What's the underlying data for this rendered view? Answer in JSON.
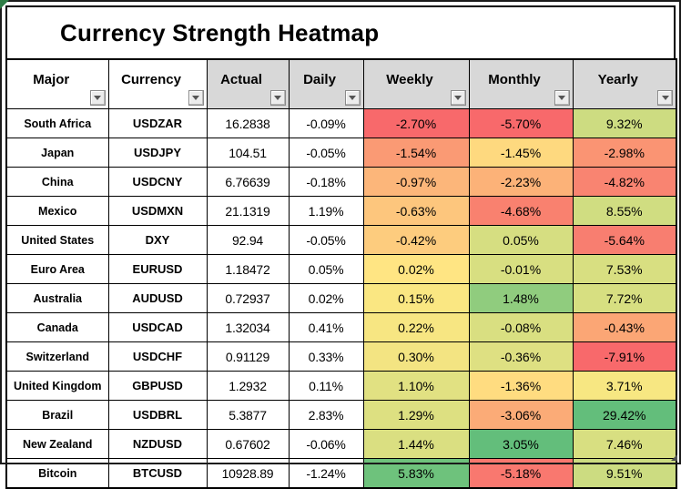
{
  "title": "Currency Strength Heatmap",
  "columns": [
    {
      "label": "Major",
      "header_bg": "#FFFFFF",
      "has_filter": true
    },
    {
      "label": "Currency",
      "header_bg": "#FFFFFF",
      "has_filter": true
    },
    {
      "label": "Actual",
      "header_bg": "#D8D8D8",
      "has_filter": true
    },
    {
      "label": "Daily",
      "header_bg": "#D8D8D8",
      "has_filter": true
    },
    {
      "label": "Weekly",
      "header_bg": "#D8D8D8",
      "has_filter": true
    },
    {
      "label": "Monthly",
      "header_bg": "#D8D8D8",
      "has_filter": true
    },
    {
      "label": "Yearly",
      "header_bg": "#D8D8D8",
      "has_filter": true
    }
  ],
  "rows": [
    {
      "major": "South Africa",
      "currency": "USDZAR",
      "actual": "16.2838",
      "daily": "-0.09%",
      "weekly": {
        "value": "-2.70%",
        "bg": "#F8696B"
      },
      "monthly": {
        "value": "-5.70%",
        "bg": "#F8696B"
      },
      "yearly": {
        "value": "9.32%",
        "bg": "#CDDC81"
      }
    },
    {
      "major": "Japan",
      "currency": "USDJPY",
      "actual": "104.51",
      "daily": "-0.05%",
      "weekly": {
        "value": "-1.54%",
        "bg": "#FA9A74"
      },
      "monthly": {
        "value": "-1.45%",
        "bg": "#FED97F"
      },
      "yearly": {
        "value": "-2.98%",
        "bg": "#FA9473"
      }
    },
    {
      "major": "China",
      "currency": "USDCNY",
      "actual": "6.76639",
      "daily": "-0.18%",
      "weekly": {
        "value": "-0.97%",
        "bg": "#FCB67A"
      },
      "monthly": {
        "value": "-2.23%",
        "bg": "#FCB278"
      },
      "yearly": {
        "value": "-4.82%",
        "bg": "#F98471"
      }
    },
    {
      "major": "Mexico",
      "currency": "USDMXN",
      "actual": "21.1319",
      "daily": "1.19%",
      "weekly": {
        "value": "-0.63%",
        "bg": "#FDC67D"
      },
      "monthly": {
        "value": "-4.68%",
        "bg": "#F9816F"
      },
      "yearly": {
        "value": "8.55%",
        "bg": "#D0DD81"
      }
    },
    {
      "major": "United States",
      "currency": "DXY",
      "actual": "92.94",
      "daily": "-0.05%",
      "weekly": {
        "value": "-0.42%",
        "bg": "#FDCC7E"
      },
      "monthly": {
        "value": "0.05%",
        "bg": "#D6DE81"
      },
      "yearly": {
        "value": "-5.64%",
        "bg": "#F87E70"
      }
    },
    {
      "major": "Euro Area",
      "currency": "EURUSD",
      "actual": "1.18472",
      "daily": "0.05%",
      "weekly": {
        "value": "0.02%",
        "bg": "#FFE583"
      },
      "monthly": {
        "value": "-0.01%",
        "bg": "#D8DF81"
      },
      "yearly": {
        "value": "7.53%",
        "bg": "#D8DF81"
      }
    },
    {
      "major": "Australia",
      "currency": "AUDUSD",
      "actual": "0.72937",
      "daily": "0.02%",
      "weekly": {
        "value": "0.15%",
        "bg": "#FAE782"
      },
      "monthly": {
        "value": "1.48%",
        "bg": "#90CC7E"
      },
      "yearly": {
        "value": "7.72%",
        "bg": "#D7DF81"
      }
    },
    {
      "major": "Canada",
      "currency": "USDCAD",
      "actual": "1.32034",
      "daily": "0.41%",
      "weekly": {
        "value": "0.22%",
        "bg": "#F7E682"
      },
      "monthly": {
        "value": "-0.08%",
        "bg": "#D9DF81"
      },
      "yearly": {
        "value": "-0.43%",
        "bg": "#FBA675"
      }
    },
    {
      "major": "Switzerland",
      "currency": "USDCHF",
      "actual": "0.91129",
      "daily": "0.33%",
      "weekly": {
        "value": "0.30%",
        "bg": "#F3E482"
      },
      "monthly": {
        "value": "-0.36%",
        "bg": "#DEE082"
      },
      "yearly": {
        "value": "-7.91%",
        "bg": "#F8696B"
      }
    },
    {
      "major": "United Kingdom",
      "currency": "GBPUSD",
      "actual": "1.2932",
      "daily": "0.11%",
      "weekly": {
        "value": "1.10%",
        "bg": "#E1E182"
      },
      "monthly": {
        "value": "-1.36%",
        "bg": "#FFDC80"
      },
      "yearly": {
        "value": "3.71%",
        "bg": "#F7E782"
      }
    },
    {
      "major": "Brazil",
      "currency": "USDBRL",
      "actual": "5.3877",
      "daily": "2.83%",
      "weekly": {
        "value": "1.29%",
        "bg": "#DDE081"
      },
      "monthly": {
        "value": "-3.06%",
        "bg": "#FBAB77"
      },
      "yearly": {
        "value": "29.42%",
        "bg": "#63BE7B"
      }
    },
    {
      "major": "New Zealand",
      "currency": "NZDUSD",
      "actual": "0.67602",
      "daily": "-0.06%",
      "weekly": {
        "value": "1.44%",
        "bg": "#DADF81"
      },
      "monthly": {
        "value": "3.05%",
        "bg": "#63BE7B"
      },
      "yearly": {
        "value": "7.46%",
        "bg": "#D8DF81"
      }
    },
    {
      "major": "Bitcoin",
      "currency": "BTCUSD",
      "actual": "10928.89",
      "daily": "-1.24%",
      "weekly": {
        "value": "5.83%",
        "bg": "#6EC27C"
      },
      "monthly": {
        "value": "-5.18%",
        "bg": "#F9786F"
      },
      "yearly": {
        "value": "9.51%",
        "bg": "#CCDC81"
      }
    }
  ],
  "colors": {
    "header_gray": "#D8D8D8",
    "grid_border": "#000000",
    "corner_flag_green": "#2E7D46",
    "scale_min_red": "#F8696B",
    "scale_mid_yellow": "#FFEB84",
    "scale_max_green": "#63BE7B"
  },
  "chart_data": {
    "type": "heatmap",
    "title": "Currency Strength Heatmap",
    "columns": [
      "Major",
      "Currency",
      "Actual",
      "Daily",
      "Weekly",
      "Monthly",
      "Yearly"
    ],
    "value_columns_colored": [
      "Weekly",
      "Monthly",
      "Yearly"
    ],
    "rows": [
      [
        "South Africa",
        "USDZAR",
        16.2838,
        -0.09,
        -2.7,
        -5.7,
        9.32
      ],
      [
        "Japan",
        "USDJPY",
        104.51,
        -0.05,
        -1.54,
        -1.45,
        -2.98
      ],
      [
        "China",
        "USDCNY",
        6.76639,
        -0.18,
        -0.97,
        -2.23,
        -4.82
      ],
      [
        "Mexico",
        "USDMXN",
        21.1319,
        1.19,
        -0.63,
        -4.68,
        8.55
      ],
      [
        "United States",
        "DXY",
        92.94,
        -0.05,
        -0.42,
        0.05,
        -5.64
      ],
      [
        "Euro Area",
        "EURUSD",
        1.18472,
        0.05,
        0.02,
        -0.01,
        7.53
      ],
      [
        "Australia",
        "AUDUSD",
        0.72937,
        0.02,
        0.15,
        1.48,
        7.72
      ],
      [
        "Canada",
        "USDCAD",
        1.32034,
        0.41,
        0.22,
        -0.08,
        -0.43
      ],
      [
        "Switzerland",
        "USDCHF",
        0.91129,
        0.33,
        0.3,
        -0.36,
        -7.91
      ],
      [
        "United Kingdom",
        "GBPUSD",
        1.2932,
        0.11,
        1.1,
        -1.36,
        3.71
      ],
      [
        "Brazil",
        "USDBRL",
        5.3877,
        2.83,
        1.29,
        -3.06,
        29.42
      ],
      [
        "New Zealand",
        "NZDUSD",
        0.67602,
        -0.06,
        1.44,
        3.05,
        7.46
      ],
      [
        "Bitcoin",
        "BTCUSD",
        10928.89,
        -1.24,
        5.83,
        -5.18,
        9.51
      ]
    ],
    "units": {
      "Daily": "%",
      "Weekly": "%",
      "Monthly": "%",
      "Yearly": "%"
    },
    "color_scale": {
      "min": "#F8696B",
      "mid": "#FFEB84",
      "max": "#63BE7B"
    }
  }
}
